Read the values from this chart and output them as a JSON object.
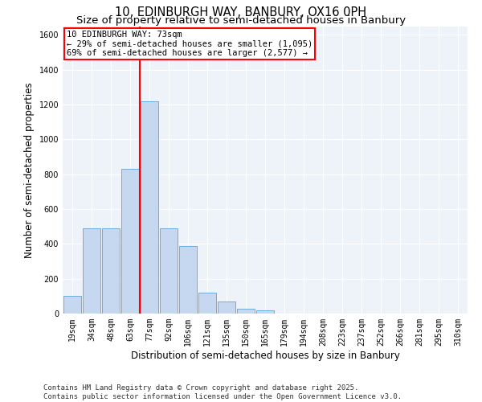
{
  "title_line1": "10, EDINBURGH WAY, BANBURY, OX16 0PH",
  "title_line2": "Size of property relative to semi-detached houses in Banbury",
  "xlabel": "Distribution of semi-detached houses by size in Banbury",
  "ylabel": "Number of semi-detached properties",
  "categories": [
    "19sqm",
    "34sqm",
    "48sqm",
    "63sqm",
    "77sqm",
    "92sqm",
    "106sqm",
    "121sqm",
    "135sqm",
    "150sqm",
    "165sqm",
    "179sqm",
    "194sqm",
    "208sqm",
    "223sqm",
    "237sqm",
    "252sqm",
    "266sqm",
    "281sqm",
    "295sqm",
    "310sqm"
  ],
  "values": [
    100,
    490,
    490,
    830,
    1220,
    490,
    390,
    120,
    70,
    30,
    20,
    0,
    0,
    0,
    0,
    0,
    0,
    0,
    0,
    0,
    0
  ],
  "bar_color": "#c5d8f0",
  "bar_edge_color": "#6aaee0",
  "vline_index": 4,
  "vline_color": "red",
  "annotation_title": "10 EDINBURGH WAY: 73sqm",
  "annotation_smaller": "← 29% of semi-detached houses are smaller (1,095)",
  "annotation_larger": "69% of semi-detached houses are larger (2,577) →",
  "ylim": [
    0,
    1650
  ],
  "yticks": [
    0,
    200,
    400,
    600,
    800,
    1000,
    1200,
    1400,
    1600
  ],
  "bg_color": "#eef2f9",
  "grid_color": "#ffffff",
  "footer": "Contains HM Land Registry data © Crown copyright and database right 2025.\nContains public sector information licensed under the Open Government Licence v3.0.",
  "title_fontsize": 10.5,
  "subtitle_fontsize": 9.5,
  "axis_label_fontsize": 8.5,
  "tick_fontsize": 7,
  "annot_fontsize": 7.5,
  "footer_fontsize": 6.5
}
